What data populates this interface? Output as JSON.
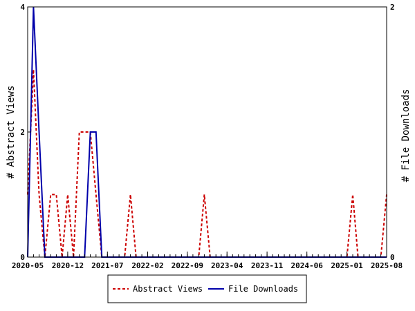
{
  "chart_data": {
    "type": "line",
    "xlabel": "",
    "ylabel_left": "# Abstract Views",
    "ylabel_right": "# File Downloads",
    "x_ticks": [
      "2020-05",
      "2020-12",
      "2021-07",
      "2022-02",
      "2022-09",
      "2023-04",
      "2023-11",
      "2024-06",
      "2025-01",
      "2025-08"
    ],
    "ylim_left": [
      0,
      4
    ],
    "ylim_right": [
      0,
      2
    ],
    "y_ticks_left": [
      "0",
      "2",
      "4"
    ],
    "y_ticks_right": [
      "0",
      "2"
    ],
    "grid": false,
    "legend_position": "bottom",
    "series": [
      {
        "name": "Abstract Views",
        "axis": "left",
        "color": "#cc0000",
        "style": "dashed",
        "x": [
          "2020-05",
          "2020-06",
          "2020-07",
          "2020-08",
          "2020-09",
          "2020-10",
          "2020-11",
          "2020-12",
          "2021-01",
          "2021-02",
          "2021-03",
          "2021-04",
          "2021-05",
          "2021-06",
          "2021-07",
          "2021-08",
          "2021-09",
          "2021-10",
          "2021-11",
          "2021-12",
          "2022-01",
          "2022-02",
          "2022-03",
          "2022-04",
          "2022-05",
          "2022-06",
          "2022-07",
          "2022-08",
          "2022-09",
          "2022-10",
          "2022-11",
          "2022-12",
          "2023-01",
          "2023-02",
          "2023-03",
          "2023-04",
          "2023-05",
          "2023-06",
          "2023-07",
          "2023-08",
          "2023-09",
          "2023-10",
          "2023-11",
          "2023-12",
          "2024-01",
          "2024-02",
          "2024-03",
          "2024-04",
          "2024-05",
          "2024-06",
          "2024-07",
          "2024-08",
          "2024-09",
          "2024-10",
          "2024-11",
          "2024-12",
          "2025-01",
          "2025-02",
          "2025-03",
          "2025-04",
          "2025-05",
          "2025-06",
          "2025-07",
          "2025-08"
        ],
        "y": [
          1,
          3,
          1,
          0,
          1,
          1,
          0,
          1,
          0,
          2,
          2,
          2,
          1,
          0,
          0,
          0,
          0,
          0,
          1,
          0,
          0,
          0,
          0,
          0,
          0,
          0,
          0,
          0,
          0,
          0,
          0,
          1,
          0,
          0,
          0,
          0,
          0,
          0,
          0,
          0,
          0,
          0,
          0,
          0,
          0,
          0,
          0,
          0,
          0,
          0,
          0,
          0,
          0,
          0,
          0,
          0,
          0,
          1,
          0,
          0,
          0,
          0,
          0,
          1
        ]
      },
      {
        "name": "File Downloads",
        "axis": "right",
        "color": "#0000aa",
        "style": "solid",
        "x": [
          "2020-05",
          "2020-06",
          "2020-07",
          "2020-08",
          "2020-09",
          "2020-10",
          "2020-11",
          "2020-12",
          "2021-01",
          "2021-02",
          "2021-03",
          "2021-04",
          "2021-05",
          "2021-06",
          "2021-07",
          "2021-08",
          "2021-09",
          "2021-10",
          "2021-11",
          "2021-12",
          "2022-01",
          "2022-02",
          "2022-03",
          "2022-04",
          "2022-05",
          "2022-06",
          "2022-07",
          "2022-08",
          "2022-09",
          "2022-10",
          "2022-11",
          "2022-12",
          "2023-01",
          "2023-02",
          "2023-03",
          "2023-04",
          "2023-05",
          "2023-06",
          "2023-07",
          "2023-08",
          "2023-09",
          "2023-10",
          "2023-11",
          "2023-12",
          "2024-01",
          "2024-02",
          "2024-03",
          "2024-04",
          "2024-05",
          "2024-06",
          "2024-07",
          "2024-08",
          "2024-09",
          "2024-10",
          "2024-11",
          "2024-12",
          "2025-01",
          "2025-02",
          "2025-03",
          "2025-04",
          "2025-05",
          "2025-06",
          "2025-07",
          "2025-08"
        ],
        "y": [
          0,
          2,
          1,
          0,
          0,
          0,
          0,
          0,
          0,
          0,
          0,
          1,
          1,
          0,
          0,
          0,
          0,
          0,
          0,
          0,
          0,
          0,
          0,
          0,
          0,
          0,
          0,
          0,
          0,
          0,
          0,
          0,
          0,
          0,
          0,
          0,
          0,
          0,
          0,
          0,
          0,
          0,
          0,
          0,
          0,
          0,
          0,
          0,
          0,
          0,
          0,
          0,
          0,
          0,
          0,
          0,
          0,
          0,
          0,
          0,
          0,
          0,
          0,
          0
        ]
      }
    ]
  },
  "legend": {
    "items": [
      {
        "label": "Abstract Views",
        "color": "#cc0000",
        "style": "dashed"
      },
      {
        "label": "File Downloads",
        "color": "#0000aa",
        "style": "solid"
      }
    ]
  }
}
